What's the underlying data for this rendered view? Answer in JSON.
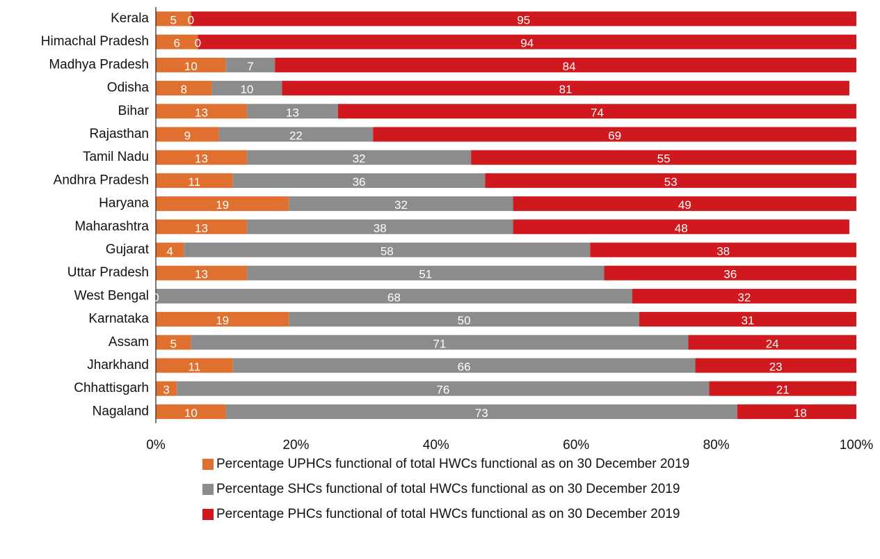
{
  "chart_data": {
    "type": "stacked-bar-horizontal",
    "categories": [
      "Kerala",
      "Himachal Pradesh",
      "Madhya Pradesh",
      "Odisha",
      "Bihar",
      "Rajasthan",
      "Tamil Nadu",
      "Andhra Pradesh",
      "Haryana",
      "Maharashtra",
      "Gujarat",
      "Uttar Pradesh",
      "West Bengal",
      "Karnataka",
      "Assam",
      "Jharkhand",
      "Chhattisgarh",
      "Nagaland"
    ],
    "series": [
      {
        "name": "Percentage UPHCs functional of total HWCs functional as on 30 December 2019",
        "color": "#e07030",
        "values": [
          5,
          6,
          10,
          8,
          13,
          9,
          13,
          11,
          19,
          13,
          4,
          13,
          0,
          19,
          5,
          11,
          3,
          10
        ]
      },
      {
        "name": "Percentage SHCs functional of total HWCs functional as on 30 December 2019",
        "color": "#8c8c8c",
        "values": [
          0,
          0,
          7,
          10,
          13,
          22,
          32,
          36,
          32,
          38,
          58,
          51,
          68,
          50,
          71,
          66,
          76,
          73
        ]
      },
      {
        "name": "Percentage PHCs functional of total HWCs functional as on 30 December 2019",
        "color": "#d0191e",
        "values": [
          95,
          94,
          84,
          81,
          74,
          69,
          55,
          53,
          49,
          48,
          38,
          36,
          32,
          31,
          24,
          23,
          21,
          18
        ]
      }
    ],
    "xlim": [
      0,
      100
    ],
    "xticks": [
      {
        "value": 0,
        "label": "0%"
      },
      {
        "value": 20,
        "label": "20%"
      },
      {
        "value": 40,
        "label": "40%"
      },
      {
        "value": 60,
        "label": "60%"
      },
      {
        "value": 80,
        "label": "80%"
      },
      {
        "value": 100,
        "label": "100%"
      }
    ],
    "legend": "bottom"
  }
}
